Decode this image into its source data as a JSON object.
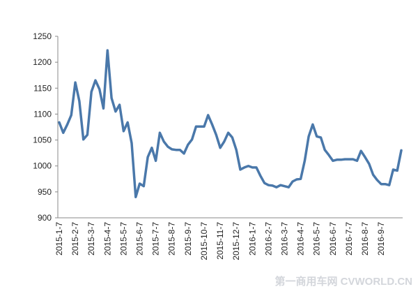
{
  "chart_data": {
    "type": "line",
    "categories": [
      "2015-1-7",
      null,
      null,
      null,
      "2015-2-7",
      null,
      null,
      null,
      "2015-3-7",
      null,
      null,
      null,
      "2015-4-7",
      null,
      null,
      null,
      "2015-5-7",
      null,
      null,
      null,
      "2015-6-7",
      null,
      null,
      null,
      "2015-7-7",
      null,
      null,
      null,
      "2015-8-7",
      null,
      null,
      null,
      "2015-9-7",
      null,
      null,
      null,
      "2015-10-7",
      null,
      null,
      null,
      "2015-11-7",
      null,
      null,
      null,
      "2015-12-7",
      null,
      null,
      null,
      "2016-1-7",
      null,
      null,
      null,
      "2016-2-7",
      null,
      null,
      null,
      "2016-3-7",
      null,
      null,
      null,
      "2016-4-7",
      null,
      null,
      null,
      "2016-5-7",
      null,
      null,
      null,
      "2016-6-7",
      null,
      null,
      null,
      "2016-7-7",
      null,
      null,
      null,
      "2016-8-7",
      null,
      null,
      null,
      "2016-9-7",
      null,
      null,
      null,
      null,
      null
    ],
    "values": [
      1084,
      1064,
      1080,
      1098,
      1161,
      1125,
      1051,
      1060,
      1143,
      1165,
      1148,
      1111,
      1223,
      1131,
      1105,
      1118,
      1067,
      1084,
      1044,
      940,
      966,
      961,
      1017,
      1035,
      1010,
      1064,
      1047,
      1037,
      1032,
      1031,
      1031,
      1024,
      1041,
      1051,
      1076,
      1076,
      1076,
      1098,
      1080,
      1060,
      1035,
      1047,
      1064,
      1055,
      1031,
      993,
      997,
      1000,
      997,
      997,
      981,
      967,
      963,
      962,
      959,
      963,
      961,
      959,
      970,
      974,
      975,
      1010,
      1057,
      1080,
      1057,
      1055,
      1031,
      1021,
      1010,
      1012,
      1012,
      1013,
      1013,
      1013,
      1010,
      1029,
      1017,
      1004,
      983,
      973,
      965,
      965,
      963,
      993,
      991,
      1030
    ],
    "color": "#4a78aa",
    "ylim": [
      900,
      1250
    ],
    "yticks": [
      900,
      950,
      1000,
      1050,
      1100,
      1150,
      1200,
      1250
    ]
  },
  "watermark": "第一商用车网 CVWORLD.CN"
}
